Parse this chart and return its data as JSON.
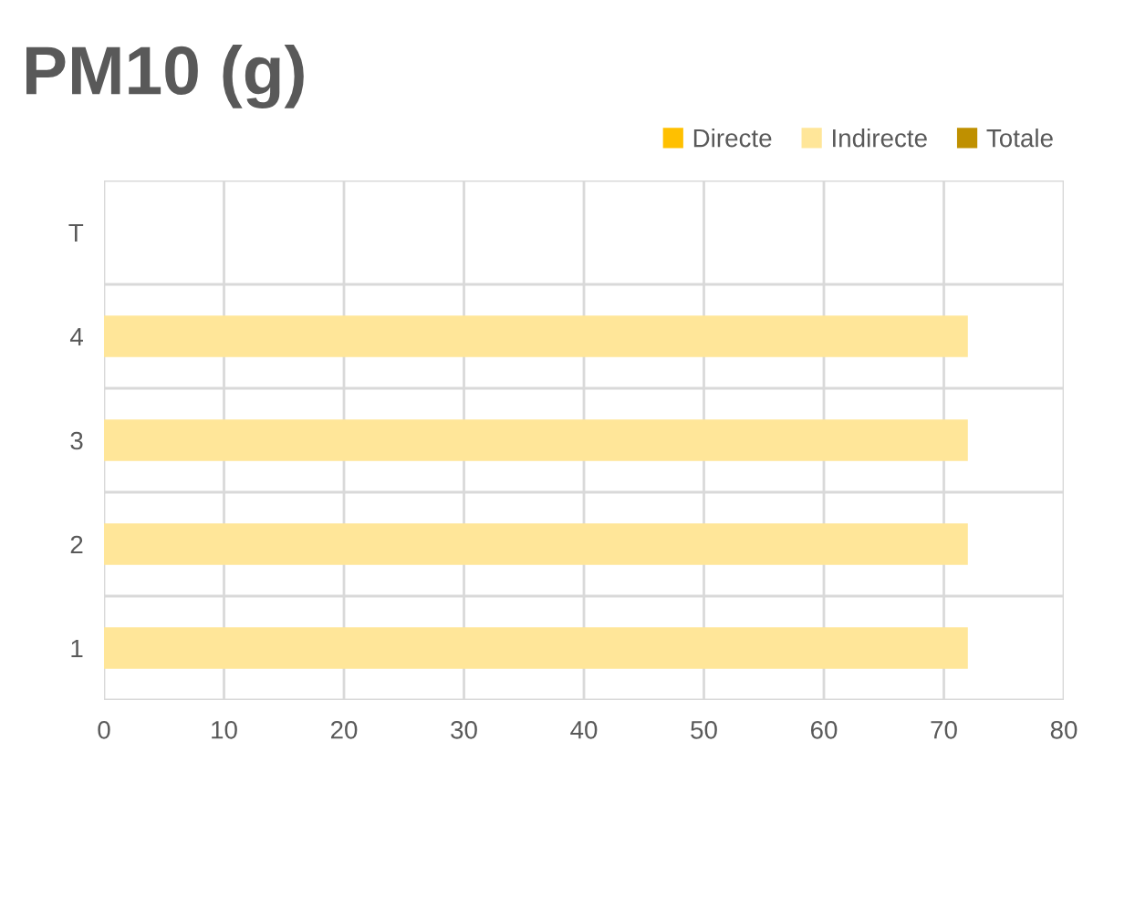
{
  "chart_data": {
    "type": "bar",
    "title": "PM10 (g)",
    "orientation": "horizontal",
    "categories": [
      "T",
      "4",
      "3",
      "2",
      "1"
    ],
    "series": [
      {
        "name": "Directe",
        "color": "#ffc000",
        "values": [
          null,
          null,
          null,
          null,
          null
        ]
      },
      {
        "name": "Indirecte",
        "color": "#ffe699",
        "values": [
          null,
          72,
          72,
          72,
          72
        ]
      },
      {
        "name": "Totale",
        "color": "#bf9000",
        "values": [
          null,
          null,
          null,
          null,
          null
        ]
      }
    ],
    "xlim": [
      0,
      80
    ],
    "xticks": [
      0,
      10,
      20,
      30,
      40,
      50,
      60,
      70,
      80
    ],
    "grid": true,
    "legend": "top right"
  }
}
